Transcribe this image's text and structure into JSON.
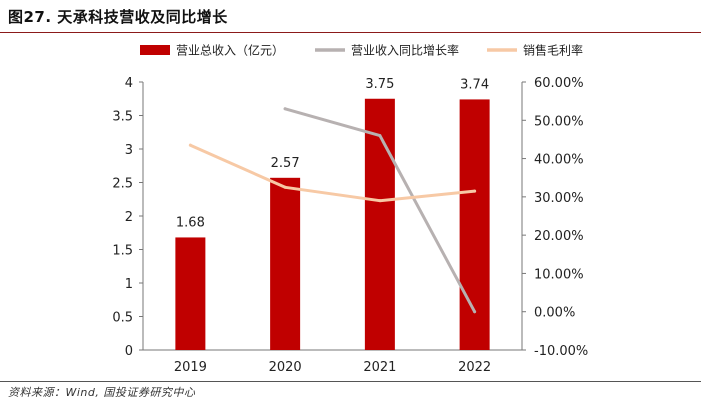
{
  "header": {
    "title": "图27. 天承科技营收及同比增长"
  },
  "footer": {
    "source": "资料来源：Wind, 国投证券研究中心"
  },
  "chart_data": {
    "type": "bar",
    "categories": [
      "2019",
      "2020",
      "2021",
      "2022"
    ],
    "series": [
      {
        "name": "营业总收入（亿元）",
        "type": "bar",
        "axis": "left",
        "values": [
          1.68,
          2.57,
          3.75,
          3.74
        ],
        "color": "#c00000",
        "data_labels": [
          "1.68",
          "2.57",
          "3.75",
          "3.74"
        ]
      },
      {
        "name": "营业收入同比增长率",
        "type": "line",
        "axis": "right",
        "values": [
          null,
          0.53,
          0.46,
          0.0
        ],
        "color": "#b7b1b1"
      },
      {
        "name": "销售毛利率",
        "type": "line",
        "axis": "right",
        "values": [
          0.435,
          0.325,
          0.29,
          0.315
        ],
        "color": "#f7c9a5"
      }
    ],
    "y_left": {
      "min": 0,
      "max": 4,
      "ticks": [
        0,
        0.5,
        1,
        1.5,
        2,
        2.5,
        3,
        3.5,
        4
      ],
      "tick_labels": [
        "0",
        "0.5",
        "1",
        "1.5",
        "2",
        "2.5",
        "3",
        "3.5",
        "4"
      ]
    },
    "y_right": {
      "min": -0.1,
      "max": 0.6,
      "ticks": [
        -0.1,
        0,
        0.1,
        0.2,
        0.3,
        0.4,
        0.5,
        0.6
      ],
      "tick_labels": [
        "-10.00%",
        "0.00%",
        "10.00%",
        "20.00%",
        "30.00%",
        "40.00%",
        "50.00%",
        "60.00%"
      ]
    },
    "legend_position": "top",
    "grid": false
  }
}
